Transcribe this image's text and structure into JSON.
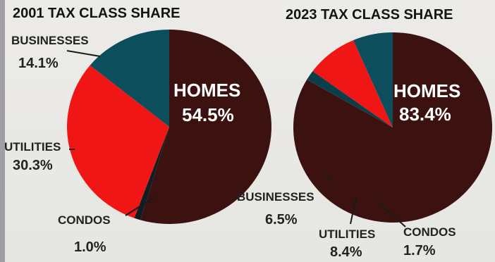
{
  "chart_data": [
    {
      "type": "pie",
      "title": "2001 TAX CLASS SHARE",
      "slices": [
        {
          "label": "HOMES",
          "value": 54.5,
          "display": "54.5%",
          "color": "#3c1210"
        },
        {
          "label": "CONDOS",
          "value": 1.0,
          "display": "1.0%",
          "color": "#0e1e22"
        },
        {
          "label": "UTILITIES",
          "value": 30.3,
          "display": "30.3%",
          "color": "#f01616"
        },
        {
          "label": "BUSINESSES",
          "value": 14.1,
          "display": "14.1%",
          "color": "#0c4e5c"
        }
      ]
    },
    {
      "type": "pie",
      "title": "2023 TAX CLASS SHARE",
      "slices": [
        {
          "label": "HOMES",
          "value": 83.4,
          "display": "83.4%",
          "color": "#3c1210"
        },
        {
          "label": "CONDOS",
          "value": 1.7,
          "display": "1.7%",
          "color": "#0c3e4a"
        },
        {
          "label": "UTILITIES",
          "value": 8.4,
          "display": "8.4%",
          "color": "#f01616"
        },
        {
          "label": "BUSINESSES",
          "value": 6.5,
          "display": "6.5%",
          "color": "#0c4e5c"
        }
      ]
    }
  ]
}
